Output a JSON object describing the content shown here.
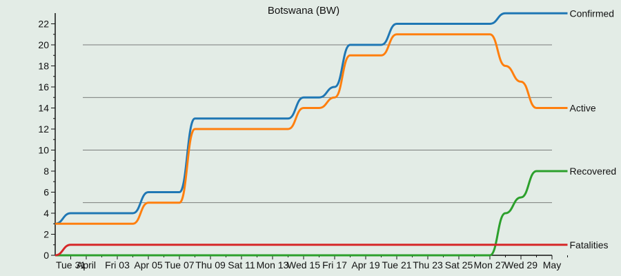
{
  "chart_data": {
    "type": "line",
    "title": "Botswana (BW)",
    "xlabel": "",
    "ylabel": "",
    "ylim": [
      0,
      23
    ],
    "yticks": [
      0,
      2,
      4,
      6,
      8,
      10,
      12,
      14,
      16,
      18,
      20,
      22
    ],
    "grid": true,
    "gridlines_y": [
      5,
      10,
      15,
      20
    ],
    "x_ticks": [
      {
        "day": 0,
        "label": "Tue 31"
      },
      {
        "day": 1,
        "label": "April"
      },
      {
        "day": 3,
        "label": "Fri 03"
      },
      {
        "day": 5,
        "label": "Apr 05"
      },
      {
        "day": 7,
        "label": "Tue 07"
      },
      {
        "day": 9,
        "label": "Thu 09"
      },
      {
        "day": 11,
        "label": "Sat 11"
      },
      {
        "day": 13,
        "label": "Mon 13"
      },
      {
        "day": 15,
        "label": "Wed 15"
      },
      {
        "day": 17,
        "label": "Fri 17"
      },
      {
        "day": 19,
        "label": "Apr 19"
      },
      {
        "day": 21,
        "label": "Tue 21"
      },
      {
        "day": 23,
        "label": "Thu 23"
      },
      {
        "day": 25,
        "label": "Sat 25"
      },
      {
        "day": 27,
        "label": "Mon 27"
      },
      {
        "day": 29,
        "label": "Wed 29"
      },
      {
        "day": 31,
        "label": "May"
      }
    ],
    "legend_placement": "right end labels",
    "series": [
      {
        "name": "Confirmed",
        "color": "#1f77b4",
        "values": [
          [
            -1,
            3
          ],
          [
            0,
            4
          ],
          [
            1,
            4
          ],
          [
            2,
            4
          ],
          [
            3,
            4
          ],
          [
            4,
            4
          ],
          [
            5,
            6
          ],
          [
            6,
            6
          ],
          [
            7,
            6
          ],
          [
            8,
            13
          ],
          [
            9,
            13
          ],
          [
            10,
            13
          ],
          [
            11,
            13
          ],
          [
            12,
            13
          ],
          [
            13,
            13
          ],
          [
            14,
            13
          ],
          [
            15,
            15
          ],
          [
            16,
            15
          ],
          [
            17,
            16
          ],
          [
            18,
            20
          ],
          [
            19,
            20
          ],
          [
            20,
            20
          ],
          [
            21,
            22
          ],
          [
            22,
            22
          ],
          [
            23,
            22
          ],
          [
            24,
            22
          ],
          [
            25,
            22
          ],
          [
            26,
            22
          ],
          [
            27,
            22
          ],
          [
            28,
            23
          ],
          [
            29,
            23
          ],
          [
            30,
            23
          ],
          [
            31,
            23
          ],
          [
            32,
            23
          ]
        ]
      },
      {
        "name": "Active",
        "color": "#ff7f0e",
        "values": [
          [
            -1,
            3
          ],
          [
            0,
            3
          ],
          [
            1,
            3
          ],
          [
            2,
            3
          ],
          [
            3,
            3
          ],
          [
            4,
            3
          ],
          [
            5,
            5
          ],
          [
            6,
            5
          ],
          [
            7,
            5
          ],
          [
            8,
            12
          ],
          [
            9,
            12
          ],
          [
            10,
            12
          ],
          [
            11,
            12
          ],
          [
            12,
            12
          ],
          [
            13,
            12
          ],
          [
            14,
            12
          ],
          [
            15,
            14
          ],
          [
            16,
            14
          ],
          [
            17,
            15
          ],
          [
            18,
            19
          ],
          [
            19,
            19
          ],
          [
            20,
            19
          ],
          [
            21,
            21
          ],
          [
            22,
            21
          ],
          [
            23,
            21
          ],
          [
            24,
            21
          ],
          [
            25,
            21
          ],
          [
            26,
            21
          ],
          [
            27,
            21
          ],
          [
            28,
            18
          ],
          [
            29,
            16.5
          ],
          [
            30,
            14
          ],
          [
            31,
            14
          ],
          [
            32,
            14
          ]
        ]
      },
      {
        "name": "Recovered",
        "color": "#2ca02c",
        "values": [
          [
            -1,
            0
          ],
          [
            0,
            0
          ],
          [
            1,
            0
          ],
          [
            2,
            0
          ],
          [
            3,
            0
          ],
          [
            4,
            0
          ],
          [
            5,
            0
          ],
          [
            6,
            0
          ],
          [
            7,
            0
          ],
          [
            8,
            0
          ],
          [
            9,
            0
          ],
          [
            10,
            0
          ],
          [
            11,
            0
          ],
          [
            12,
            0
          ],
          [
            13,
            0
          ],
          [
            14,
            0
          ],
          [
            15,
            0
          ],
          [
            16,
            0
          ],
          [
            17,
            0
          ],
          [
            18,
            0
          ],
          [
            19,
            0
          ],
          [
            20,
            0
          ],
          [
            21,
            0
          ],
          [
            22,
            0
          ],
          [
            23,
            0
          ],
          [
            24,
            0
          ],
          [
            25,
            0
          ],
          [
            26,
            0
          ],
          [
            27,
            0
          ],
          [
            28,
            4
          ],
          [
            29,
            5.5
          ],
          [
            30,
            8
          ],
          [
            31,
            8
          ],
          [
            32,
            8
          ]
        ]
      },
      {
        "name": "Fatalities",
        "color": "#d62728",
        "values": [
          [
            -1,
            0
          ],
          [
            0,
            1
          ],
          [
            1,
            1
          ],
          [
            2,
            1
          ],
          [
            3,
            1
          ],
          [
            4,
            1
          ],
          [
            5,
            1
          ],
          [
            6,
            1
          ],
          [
            7,
            1
          ],
          [
            8,
            1
          ],
          [
            9,
            1
          ],
          [
            10,
            1
          ],
          [
            11,
            1
          ],
          [
            12,
            1
          ],
          [
            13,
            1
          ],
          [
            14,
            1
          ],
          [
            15,
            1
          ],
          [
            16,
            1
          ],
          [
            17,
            1
          ],
          [
            18,
            1
          ],
          [
            19,
            1
          ],
          [
            20,
            1
          ],
          [
            21,
            1
          ],
          [
            22,
            1
          ],
          [
            23,
            1
          ],
          [
            24,
            1
          ],
          [
            25,
            1
          ],
          [
            26,
            1
          ],
          [
            27,
            1
          ],
          [
            28,
            1
          ],
          [
            29,
            1
          ],
          [
            30,
            1
          ],
          [
            31,
            1
          ],
          [
            32,
            1
          ]
        ]
      }
    ]
  }
}
